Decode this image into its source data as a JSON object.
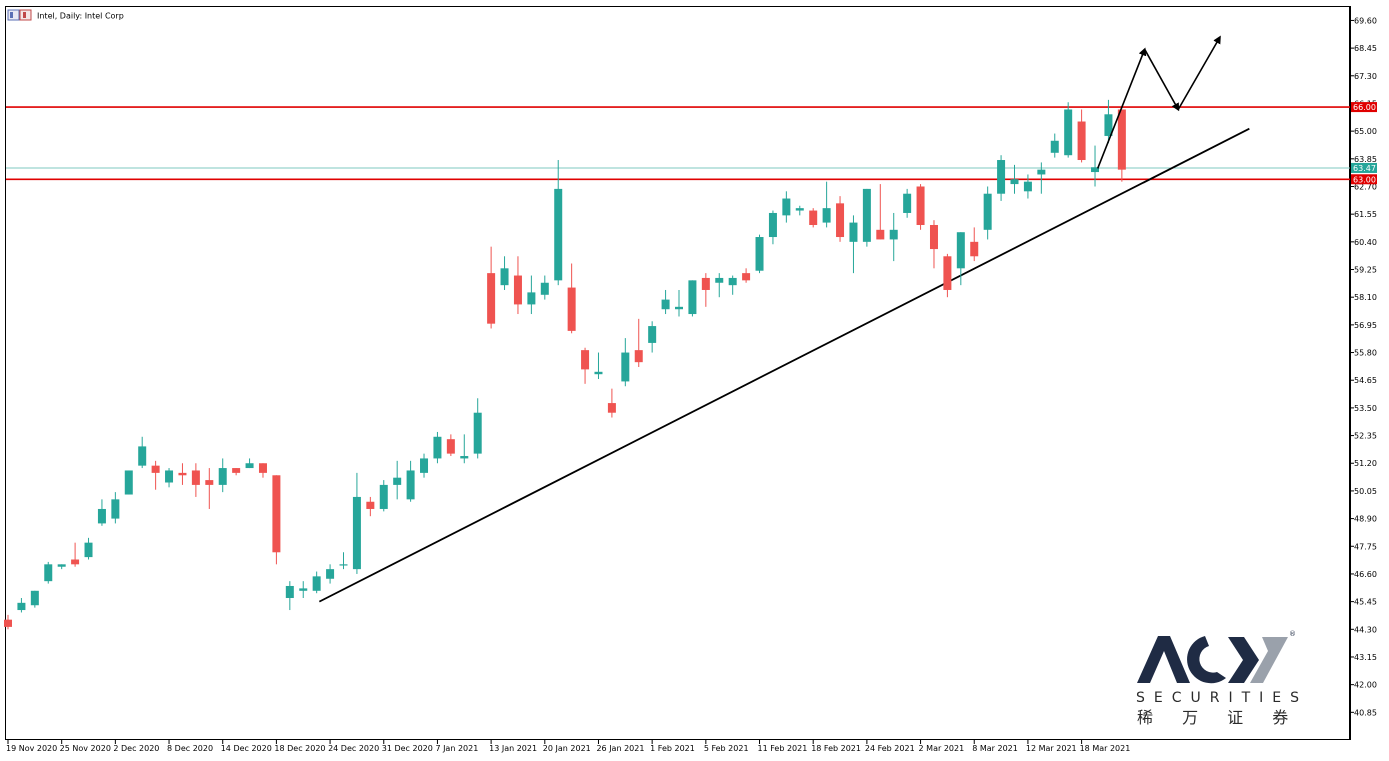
{
  "title": "Intel, Daily:  Intel Corp",
  "colors": {
    "bull": "#26a69a",
    "bear": "#ef5350",
    "resistance_line": "#e00000",
    "price_line": "#7fc8c0",
    "trendline": "#000000",
    "price_tag_red": "#e00000",
    "price_tag_teal": "#26a69a",
    "logo_blue": "#1f2b44",
    "logo_gray": "#9aa1ab"
  },
  "logo": {
    "brand": "ACY",
    "registered": "®",
    "sub_en": "SECURITIES",
    "sub_cn": "稀 万 证 券"
  },
  "chart_data": {
    "type": "candlestick",
    "title": "Intel, Daily:  Intel Corp",
    "ylim": [
      39.7,
      70.2
    ],
    "y_ticks": [
      "69.60",
      "68.45",
      "67.30",
      "66.15",
      "65.00",
      "63.85",
      "62.70",
      "61.55",
      "60.40",
      "59.25",
      "58.10",
      "56.95",
      "55.80",
      "54.65",
      "53.50",
      "52.35",
      "51.20",
      "50.05",
      "48.90",
      "47.75",
      "46.60",
      "45.45",
      "44.30",
      "43.15",
      "42.00",
      "40.85"
    ],
    "x_ticks": [
      {
        "label": "19 Nov 2020",
        "i": 0
      },
      {
        "label": "25 Nov 2020",
        "i": 4
      },
      {
        "label": "2 Dec 2020",
        "i": 8
      },
      {
        "label": "8 Dec 2020",
        "i": 12
      },
      {
        "label": "14 Dec 2020",
        "i": 16
      },
      {
        "label": "18 Dec 2020",
        "i": 20
      },
      {
        "label": "24 Dec 2020",
        "i": 24
      },
      {
        "label": "31 Dec 2020",
        "i": 28
      },
      {
        "label": "7 Jan 2021",
        "i": 32
      },
      {
        "label": "13 Jan 2021",
        "i": 36
      },
      {
        "label": "20 Jan 2021",
        "i": 40
      },
      {
        "label": "26 Jan 2021",
        "i": 44
      },
      {
        "label": "1 Feb 2021",
        "i": 48
      },
      {
        "label": "5 Feb 2021",
        "i": 52
      },
      {
        "label": "11 Feb 2021",
        "i": 56
      },
      {
        "label": "18 Feb 2021",
        "i": 60
      },
      {
        "label": "24 Feb 2021",
        "i": 64
      },
      {
        "label": "2 Mar 2021",
        "i": 68
      },
      {
        "label": "8 Mar 2021",
        "i": 72
      },
      {
        "label": "12 Mar 2021",
        "i": 76
      },
      {
        "label": "18 Mar 2021",
        "i": 80
      }
    ],
    "candles": [
      [
        44.7,
        44.9,
        44.3,
        44.4
      ],
      [
        45.1,
        45.6,
        45.0,
        45.4
      ],
      [
        45.3,
        45.9,
        45.2,
        45.9
      ],
      [
        46.3,
        47.1,
        46.2,
        47.0
      ],
      [
        46.9,
        47.0,
        46.8,
        47.0
      ],
      [
        47.2,
        47.9,
        46.9,
        47.0
      ],
      [
        47.3,
        48.1,
        47.2,
        47.9
      ],
      [
        48.7,
        49.7,
        48.6,
        49.3
      ],
      [
        48.9,
        50.0,
        48.7,
        49.7
      ],
      [
        49.9,
        50.9,
        49.9,
        50.9
      ],
      [
        51.1,
        52.3,
        51.0,
        51.9
      ],
      [
        51.1,
        51.3,
        50.1,
        50.8
      ],
      [
        50.4,
        51.0,
        50.2,
        50.9
      ],
      [
        50.8,
        51.2,
        50.3,
        50.7
      ],
      [
        50.9,
        51.2,
        49.8,
        50.3
      ],
      [
        50.5,
        51.0,
        49.3,
        50.3
      ],
      [
        50.3,
        51.4,
        50.0,
        51.0
      ],
      [
        51.0,
        51.0,
        50.7,
        50.8
      ],
      [
        51.0,
        51.4,
        51.0,
        51.2
      ],
      [
        51.2,
        51.2,
        50.6,
        50.8
      ],
      [
        50.7,
        50.7,
        47.0,
        47.5
      ],
      [
        45.6,
        46.3,
        45.1,
        46.1
      ],
      [
        45.9,
        46.3,
        45.6,
        46.0
      ],
      [
        45.9,
        46.7,
        45.8,
        46.5
      ],
      [
        46.4,
        47.0,
        46.2,
        46.8
      ],
      [
        47.0,
        47.5,
        46.8,
        47.0
      ],
      [
        46.8,
        50.8,
        46.6,
        49.8
      ],
      [
        49.6,
        49.8,
        49.0,
        49.3
      ],
      [
        49.3,
        50.5,
        49.2,
        50.3
      ],
      [
        50.3,
        51.3,
        49.7,
        50.6
      ],
      [
        49.7,
        51.3,
        49.6,
        50.9
      ],
      [
        50.8,
        51.6,
        50.6,
        51.4
      ],
      [
        51.4,
        52.5,
        51.2,
        52.3
      ],
      [
        52.2,
        52.4,
        51.5,
        51.6
      ],
      [
        51.4,
        52.4,
        51.2,
        51.5
      ],
      [
        51.6,
        53.9,
        51.4,
        53.3
      ],
      [
        59.1,
        60.2,
        56.8,
        57.0
      ],
      [
        58.6,
        59.8,
        58.4,
        59.3
      ],
      [
        59.0,
        59.8,
        57.4,
        57.8
      ],
      [
        57.8,
        59.0,
        57.4,
        58.3
      ],
      [
        58.2,
        59.0,
        58.0,
        58.7
      ],
      [
        58.8,
        63.8,
        58.6,
        62.6
      ],
      [
        58.5,
        59.5,
        56.6,
        56.7
      ],
      [
        55.9,
        56.0,
        54.5,
        55.1
      ],
      [
        54.9,
        55.8,
        54.7,
        55.0
      ],
      [
        53.7,
        54.3,
        53.1,
        53.3
      ],
      [
        54.6,
        56.4,
        54.4,
        55.8
      ],
      [
        55.9,
        57.2,
        55.2,
        55.4
      ],
      [
        56.2,
        57.1,
        55.8,
        56.9
      ],
      [
        57.6,
        58.4,
        57.4,
        58.0
      ],
      [
        57.6,
        58.4,
        57.3,
        57.7
      ],
      [
        57.4,
        58.8,
        57.3,
        58.8
      ],
      [
        58.9,
        59.1,
        57.7,
        58.4
      ],
      [
        58.7,
        59.1,
        58.1,
        58.9
      ],
      [
        58.6,
        59.0,
        58.2,
        58.9
      ],
      [
        59.1,
        59.3,
        58.7,
        58.8
      ],
      [
        59.2,
        60.7,
        59.1,
        60.6
      ],
      [
        60.6,
        61.7,
        60.3,
        61.6
      ],
      [
        61.5,
        62.5,
        61.2,
        62.2
      ],
      [
        61.7,
        61.9,
        61.5,
        61.8
      ],
      [
        61.7,
        61.8,
        61.0,
        61.1
      ],
      [
        61.2,
        62.9,
        61.0,
        61.8
      ],
      [
        62.0,
        62.3,
        60.4,
        60.6
      ],
      [
        60.4,
        61.5,
        59.1,
        61.2
      ],
      [
        60.4,
        62.6,
        60.2,
        62.6
      ],
      [
        60.9,
        62.8,
        60.5,
        60.5
      ],
      [
        60.5,
        61.6,
        59.6,
        60.9
      ],
      [
        61.6,
        62.6,
        61.4,
        62.4
      ],
      [
        62.7,
        62.8,
        60.9,
        61.1
      ],
      [
        61.1,
        61.3,
        59.3,
        60.1
      ],
      [
        59.8,
        59.9,
        58.1,
        58.4
      ],
      [
        59.3,
        60.8,
        58.6,
        60.8
      ],
      [
        60.4,
        61.0,
        59.6,
        59.8
      ],
      [
        60.9,
        62.7,
        60.5,
        62.4
      ],
      [
        62.4,
        64.0,
        62.1,
        63.8
      ],
      [
        62.8,
        63.6,
        62.4,
        63.0
      ],
      [
        62.5,
        63.2,
        62.2,
        62.9
      ],
      [
        63.2,
        63.7,
        62.4,
        63.4
      ],
      [
        64.1,
        64.9,
        63.9,
        64.6
      ],
      [
        64.0,
        66.2,
        63.9,
        65.9
      ],
      [
        65.4,
        65.9,
        63.7,
        63.8
      ],
      [
        63.3,
        64.4,
        62.7,
        63.5
      ],
      [
        64.8,
        66.3,
        64.5,
        65.7
      ],
      [
        65.9,
        65.9,
        62.9,
        63.4
      ]
    ],
    "levels": [
      {
        "name": "resistance",
        "value": 66.0,
        "label": "66.00"
      },
      {
        "name": "support",
        "value": 63.0,
        "label": "63.00"
      },
      {
        "name": "last-price",
        "value": 63.47,
        "label": "63.47"
      }
    ],
    "trendline": [
      [
        23.2,
        45.45
      ],
      [
        92.5,
        65.1
      ]
    ],
    "projection_path": [
      [
        81.2,
        63.45
      ],
      [
        84.7,
        68.4
      ],
      [
        87.2,
        65.9
      ],
      [
        90.3,
        68.9
      ]
    ]
  }
}
